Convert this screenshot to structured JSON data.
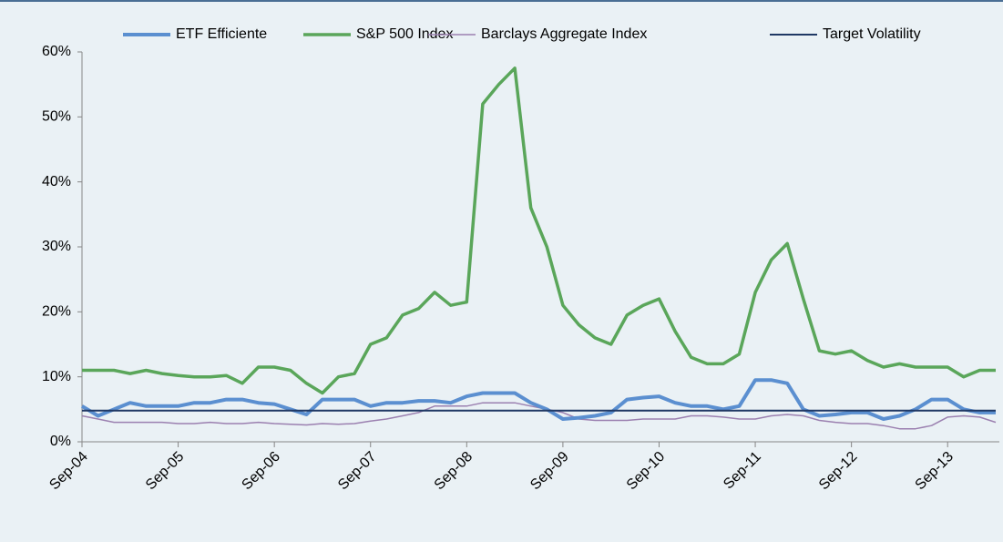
{
  "chart_data": {
    "type": "line",
    "categories": [
      "Sep-04",
      null,
      null,
      null,
      null,
      null,
      "Sep-05",
      null,
      null,
      null,
      null,
      null,
      "Sep-06",
      null,
      null,
      null,
      null,
      null,
      "Sep-07",
      null,
      null,
      null,
      null,
      null,
      "Sep-08",
      null,
      null,
      null,
      null,
      null,
      "Sep-09",
      null,
      null,
      null,
      null,
      null,
      "Sep-10",
      null,
      null,
      null,
      null,
      null,
      "Sep-11",
      null,
      null,
      null,
      null,
      null,
      "Sep-12",
      null,
      null,
      null,
      null,
      null,
      "Sep-13",
      null,
      null,
      null
    ],
    "series": [
      {
        "name": "ETF Efficiente",
        "color": "#5b8fd0",
        "values": [
          5.5,
          4,
          5,
          6,
          5.5,
          5.5,
          5.5,
          6,
          6,
          6.5,
          6.5,
          6,
          5.8,
          5,
          4.2,
          6.5,
          6.5,
          6.5,
          5.5,
          6,
          6,
          6.3,
          6.3,
          6,
          7,
          7.5,
          7.5,
          7.5,
          6,
          5,
          3.5,
          3.7,
          4,
          4.5,
          6.5,
          6.8,
          7,
          6,
          5.5,
          5.5,
          5,
          5.5,
          9.5,
          9.5,
          9,
          5,
          4,
          4.2,
          4.5,
          4.5,
          3.5,
          4,
          5,
          6.5,
          6.5,
          5,
          4.5,
          4.5
        ]
      },
      {
        "name": "S&P 500 Index",
        "color": "#5aa65a",
        "values": [
          11,
          11,
          11,
          10.5,
          11,
          10.5,
          10.2,
          10,
          10,
          10.2,
          9,
          11.5,
          11.5,
          11,
          9,
          7.5,
          10,
          10.5,
          15,
          16,
          19.5,
          20.5,
          23,
          21,
          21.5,
          52,
          55,
          57.5,
          36,
          30,
          21,
          18,
          16,
          15,
          19.5,
          21,
          22,
          17,
          13,
          12,
          12,
          13.5,
          23,
          28,
          30.5,
          22,
          14,
          13.5,
          14,
          12.5,
          11.5,
          12,
          11.5,
          11.5,
          11.5,
          10,
          11,
          11
        ]
      },
      {
        "name": "Barclays Aggregate Index",
        "color": "#9b80b0",
        "values": [
          4,
          3.5,
          3,
          3,
          3,
          3,
          2.8,
          2.8,
          3,
          2.8,
          2.8,
          3,
          2.8,
          2.7,
          2.6,
          2.8,
          2.7,
          2.8,
          3.2,
          3.5,
          4,
          4.5,
          5.5,
          5.5,
          5.5,
          6,
          6,
          6,
          5.5,
          5,
          4.5,
          3.5,
          3.3,
          3.3,
          3.3,
          3.5,
          3.5,
          3.5,
          4,
          4,
          3.8,
          3.5,
          3.5,
          4,
          4.2,
          4,
          3.3,
          3,
          2.8,
          2.8,
          2.5,
          2,
          2,
          2.5,
          3.8,
          4,
          3.8,
          3
        ]
      },
      {
        "name": "Target Volatility",
        "color": "#1f3864",
        "values": [
          4.8,
          4.8,
          4.8,
          4.8,
          4.8,
          4.8,
          4.8,
          4.8,
          4.8,
          4.8,
          4.8,
          4.8,
          4.8,
          4.8,
          4.8,
          4.8,
          4.8,
          4.8,
          4.8,
          4.8,
          4.8,
          4.8,
          4.8,
          4.8,
          4.8,
          4.8,
          4.8,
          4.8,
          4.8,
          4.8,
          4.8,
          4.8,
          4.8,
          4.8,
          4.8,
          4.8,
          4.8,
          4.8,
          4.8,
          4.8,
          4.8,
          4.8,
          4.8,
          4.8,
          4.8,
          4.8,
          4.8,
          4.8,
          4.8,
          4.8,
          4.8,
          4.8,
          4.8,
          4.8,
          4.8,
          4.8,
          4.8,
          4.8
        ]
      }
    ],
    "ylim": [
      0,
      60
    ],
    "yticks": [
      {
        "value": 0,
        "label": "0%"
      },
      {
        "value": 10,
        "label": "10%"
      },
      {
        "value": 20,
        "label": "20%"
      },
      {
        "value": 30,
        "label": "30%"
      },
      {
        "value": 40,
        "label": "40%"
      },
      {
        "value": 50,
        "label": "50%"
      },
      {
        "value": 60,
        "label": "60%"
      }
    ],
    "grid": false,
    "legend": "top"
  }
}
